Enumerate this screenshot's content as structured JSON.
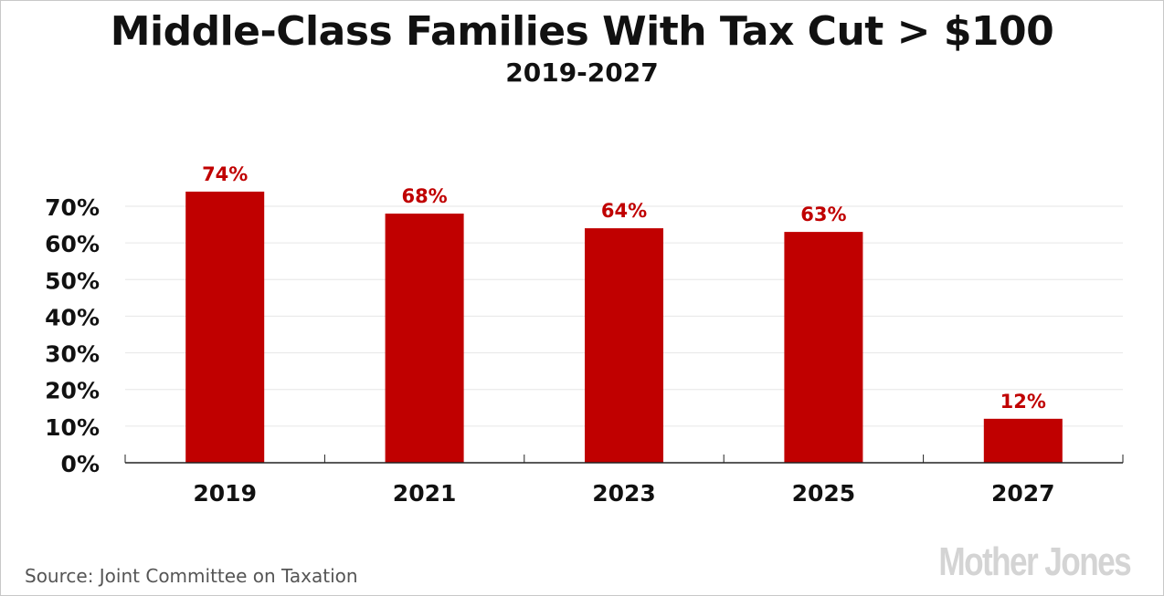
{
  "chart_data": {
    "type": "bar",
    "title": "Middle-Class Families With Tax Cut > $100",
    "subtitle": "2019-2027",
    "categories": [
      "2019",
      "2021",
      "2023",
      "2025",
      "2027"
    ],
    "values": [
      74,
      68,
      64,
      63,
      12
    ],
    "data_labels": [
      "74%",
      "68%",
      "64%",
      "63%",
      "12%"
    ],
    "ytick_labels": [
      "0%",
      "10%",
      "20%",
      "30%",
      "40%",
      "50%",
      "60%",
      "70%"
    ],
    "yticks": [
      0,
      10,
      20,
      30,
      40,
      50,
      60,
      70
    ],
    "ylim": [
      0,
      70
    ],
    "xlabel": "",
    "ylabel": "",
    "grid": true,
    "bar_color": "#c00000",
    "label_color": "#c00000"
  },
  "source": "Source: Joint Committee on Taxation",
  "logo": "Mother Jones"
}
